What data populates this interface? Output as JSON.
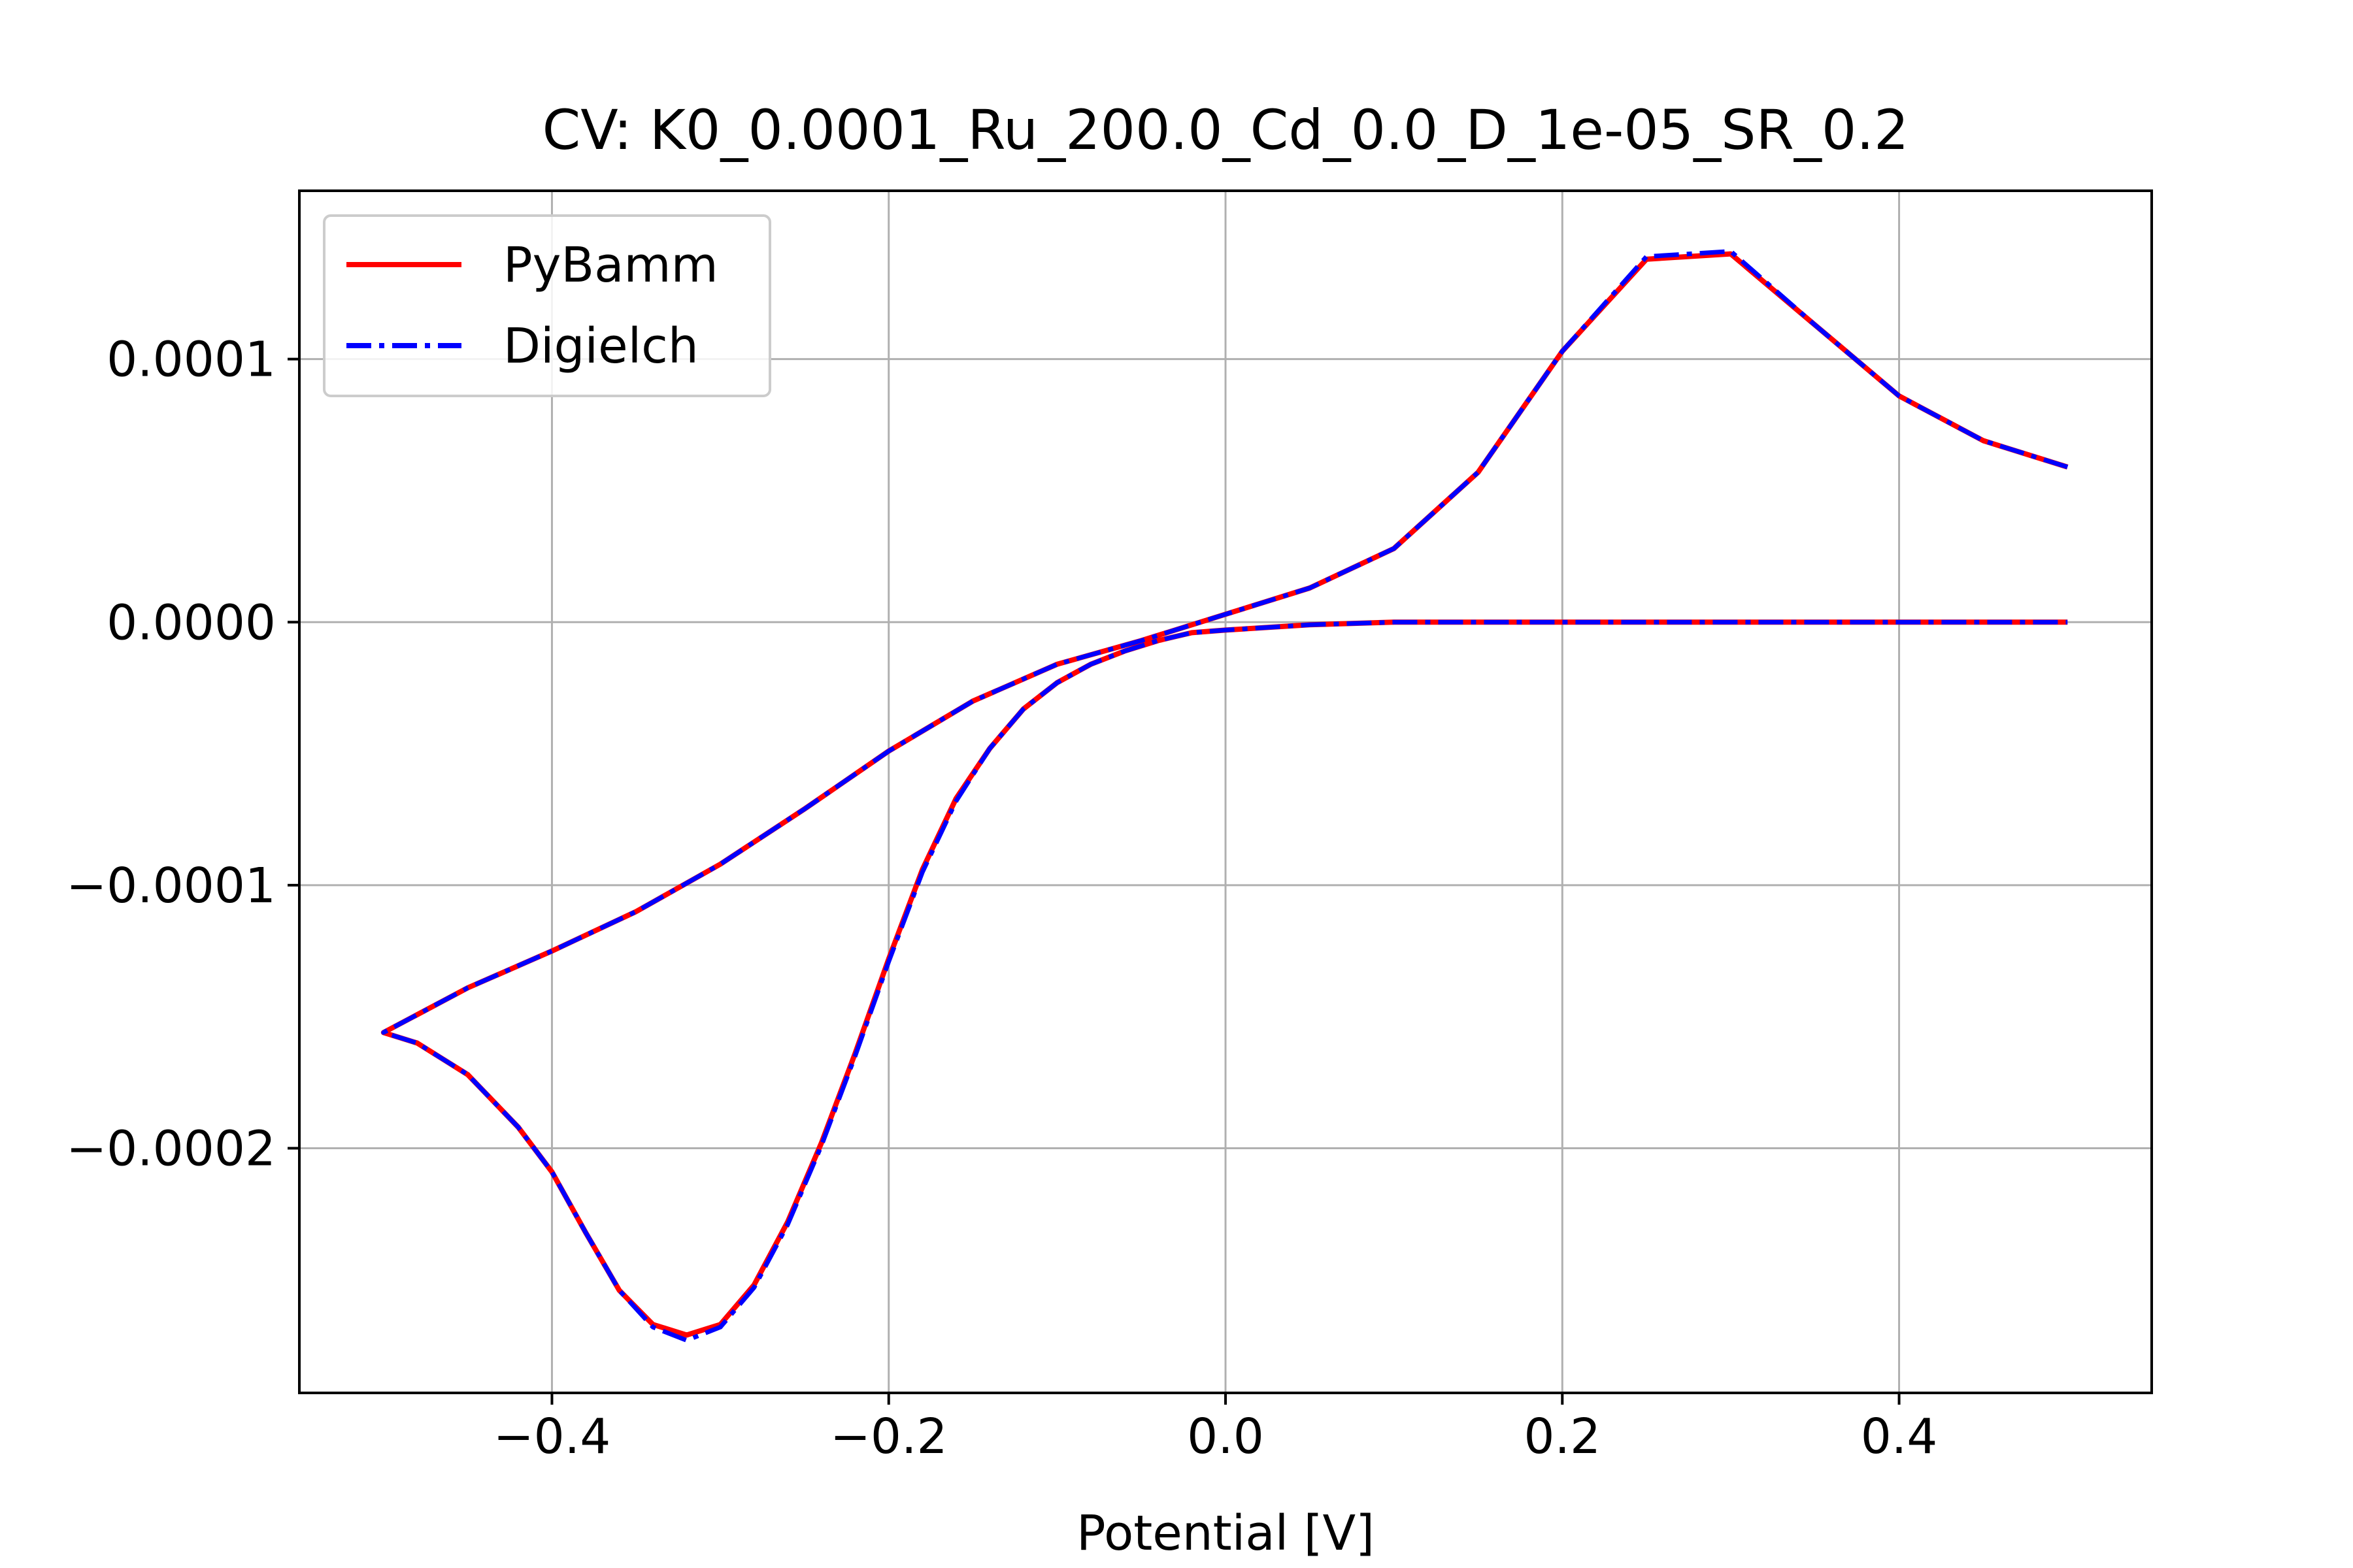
{
  "chart_data": {
    "type": "line",
    "title": "CV: K0_0.0001_Ru_200.0_Cd_0.0_D_1e-05_SR_0.2",
    "xlabel": "Potential [V]",
    "ylabel": "",
    "xlim": [
      -0.55,
      0.55
    ],
    "ylim": [
      -0.000293,
      0.000164
    ],
    "xticks": [
      {
        "value": -0.4,
        "label": "−0.4"
      },
      {
        "value": -0.2,
        "label": "−0.2"
      },
      {
        "value": 0.0,
        "label": "0.0"
      },
      {
        "value": 0.2,
        "label": "0.2"
      },
      {
        "value": 0.4,
        "label": "0.4"
      }
    ],
    "yticks": [
      {
        "value": 0.0001,
        "label": "0.0001"
      },
      {
        "value": 0.0,
        "label": "0.0000"
      },
      {
        "value": -0.0001,
        "label": "−0.0001"
      },
      {
        "value": -0.0002,
        "label": "−0.0002"
      }
    ],
    "grid": true,
    "legend_position": "top-left",
    "series": [
      {
        "name": "PyBamm",
        "color": "#ff0000",
        "linestyle": "solid",
        "x": [
          0.5,
          0.45,
          0.4,
          0.35,
          0.3,
          0.25,
          0.2,
          0.15,
          0.1,
          0.05,
          0.0,
          -0.05,
          -0.1,
          -0.15,
          -0.2,
          -0.25,
          -0.3,
          -0.35,
          -0.4,
          -0.45,
          -0.5,
          -0.48,
          -0.45,
          -0.42,
          -0.4,
          -0.38,
          -0.36,
          -0.34,
          -0.32,
          -0.3,
          -0.28,
          -0.26,
          -0.24,
          -0.22,
          -0.2,
          -0.18,
          -0.16,
          -0.14,
          -0.12,
          -0.1,
          -0.08,
          -0.06,
          -0.04,
          -0.02,
          0.0,
          0.05,
          0.1,
          0.15,
          0.2,
          0.3,
          0.4,
          0.5
        ],
        "y": [
          5.9e-05,
          6.9e-05,
          8.6e-05,
          0.000113,
          0.00014,
          0.000138,
          0.000103,
          5.7e-05,
          2.8e-05,
          1.3e-05,
          3e-06,
          -7e-06,
          -1.6e-05,
          -3e-05,
          -4.9e-05,
          -7.1e-05,
          -9.2e-05,
          -0.00011,
          -0.000125,
          -0.000139,
          -0.000156,
          -0.00016,
          -0.000172,
          -0.000192,
          -0.000209,
          -0.000232,
          -0.000254,
          -0.000267,
          -0.000271,
          -0.000267,
          -0.000252,
          -0.000228,
          -0.000198,
          -0.000164,
          -0.000128,
          -9.4e-05,
          -6.7e-05,
          -4.8e-05,
          -3.3e-05,
          -2.3e-05,
          -1.6e-05,
          -1.1e-05,
          -7e-06,
          -4e-06,
          -3e-06,
          -1e-06,
          0.0,
          0.0,
          0.0,
          0.0,
          0.0,
          0.0
        ]
      },
      {
        "name": "Digielch",
        "color": "#0000ff",
        "linestyle": "dashdot",
        "x": [
          0.5,
          0.45,
          0.4,
          0.35,
          0.3,
          0.25,
          0.2,
          0.15,
          0.1,
          0.05,
          0.0,
          -0.05,
          -0.1,
          -0.15,
          -0.2,
          -0.25,
          -0.3,
          -0.35,
          -0.4,
          -0.45,
          -0.5,
          -0.48,
          -0.45,
          -0.42,
          -0.4,
          -0.38,
          -0.36,
          -0.34,
          -0.32,
          -0.3,
          -0.28,
          -0.26,
          -0.24,
          -0.22,
          -0.2,
          -0.18,
          -0.16,
          -0.14,
          -0.12,
          -0.1,
          -0.08,
          -0.06,
          -0.04,
          -0.02,
          0.0,
          0.05,
          0.1,
          0.15,
          0.2,
          0.3,
          0.4,
          0.5
        ],
        "y": [
          5.9e-05,
          6.9e-05,
          8.6e-05,
          0.000113,
          0.000141,
          0.000139,
          0.000103,
          5.7e-05,
          2.8e-05,
          1.3e-05,
          3e-06,
          -7e-06,
          -1.6e-05,
          -3e-05,
          -4.9e-05,
          -7.1e-05,
          -9.2e-05,
          -0.00011,
          -0.000125,
          -0.000139,
          -0.000156,
          -0.00016,
          -0.000172,
          -0.000192,
          -0.000209,
          -0.000232,
          -0.000254,
          -0.000268,
          -0.000273,
          -0.000268,
          -0.000253,
          -0.000229,
          -0.000199,
          -0.000165,
          -0.000129,
          -9.5e-05,
          -6.8e-05,
          -4.8e-05,
          -3.3e-05,
          -2.3e-05,
          -1.6e-05,
          -1.1e-05,
          -7e-06,
          -4e-06,
          -3e-06,
          -1e-06,
          0.0,
          0.0,
          0.0,
          0.0,
          0.0,
          0.0
        ]
      }
    ]
  }
}
